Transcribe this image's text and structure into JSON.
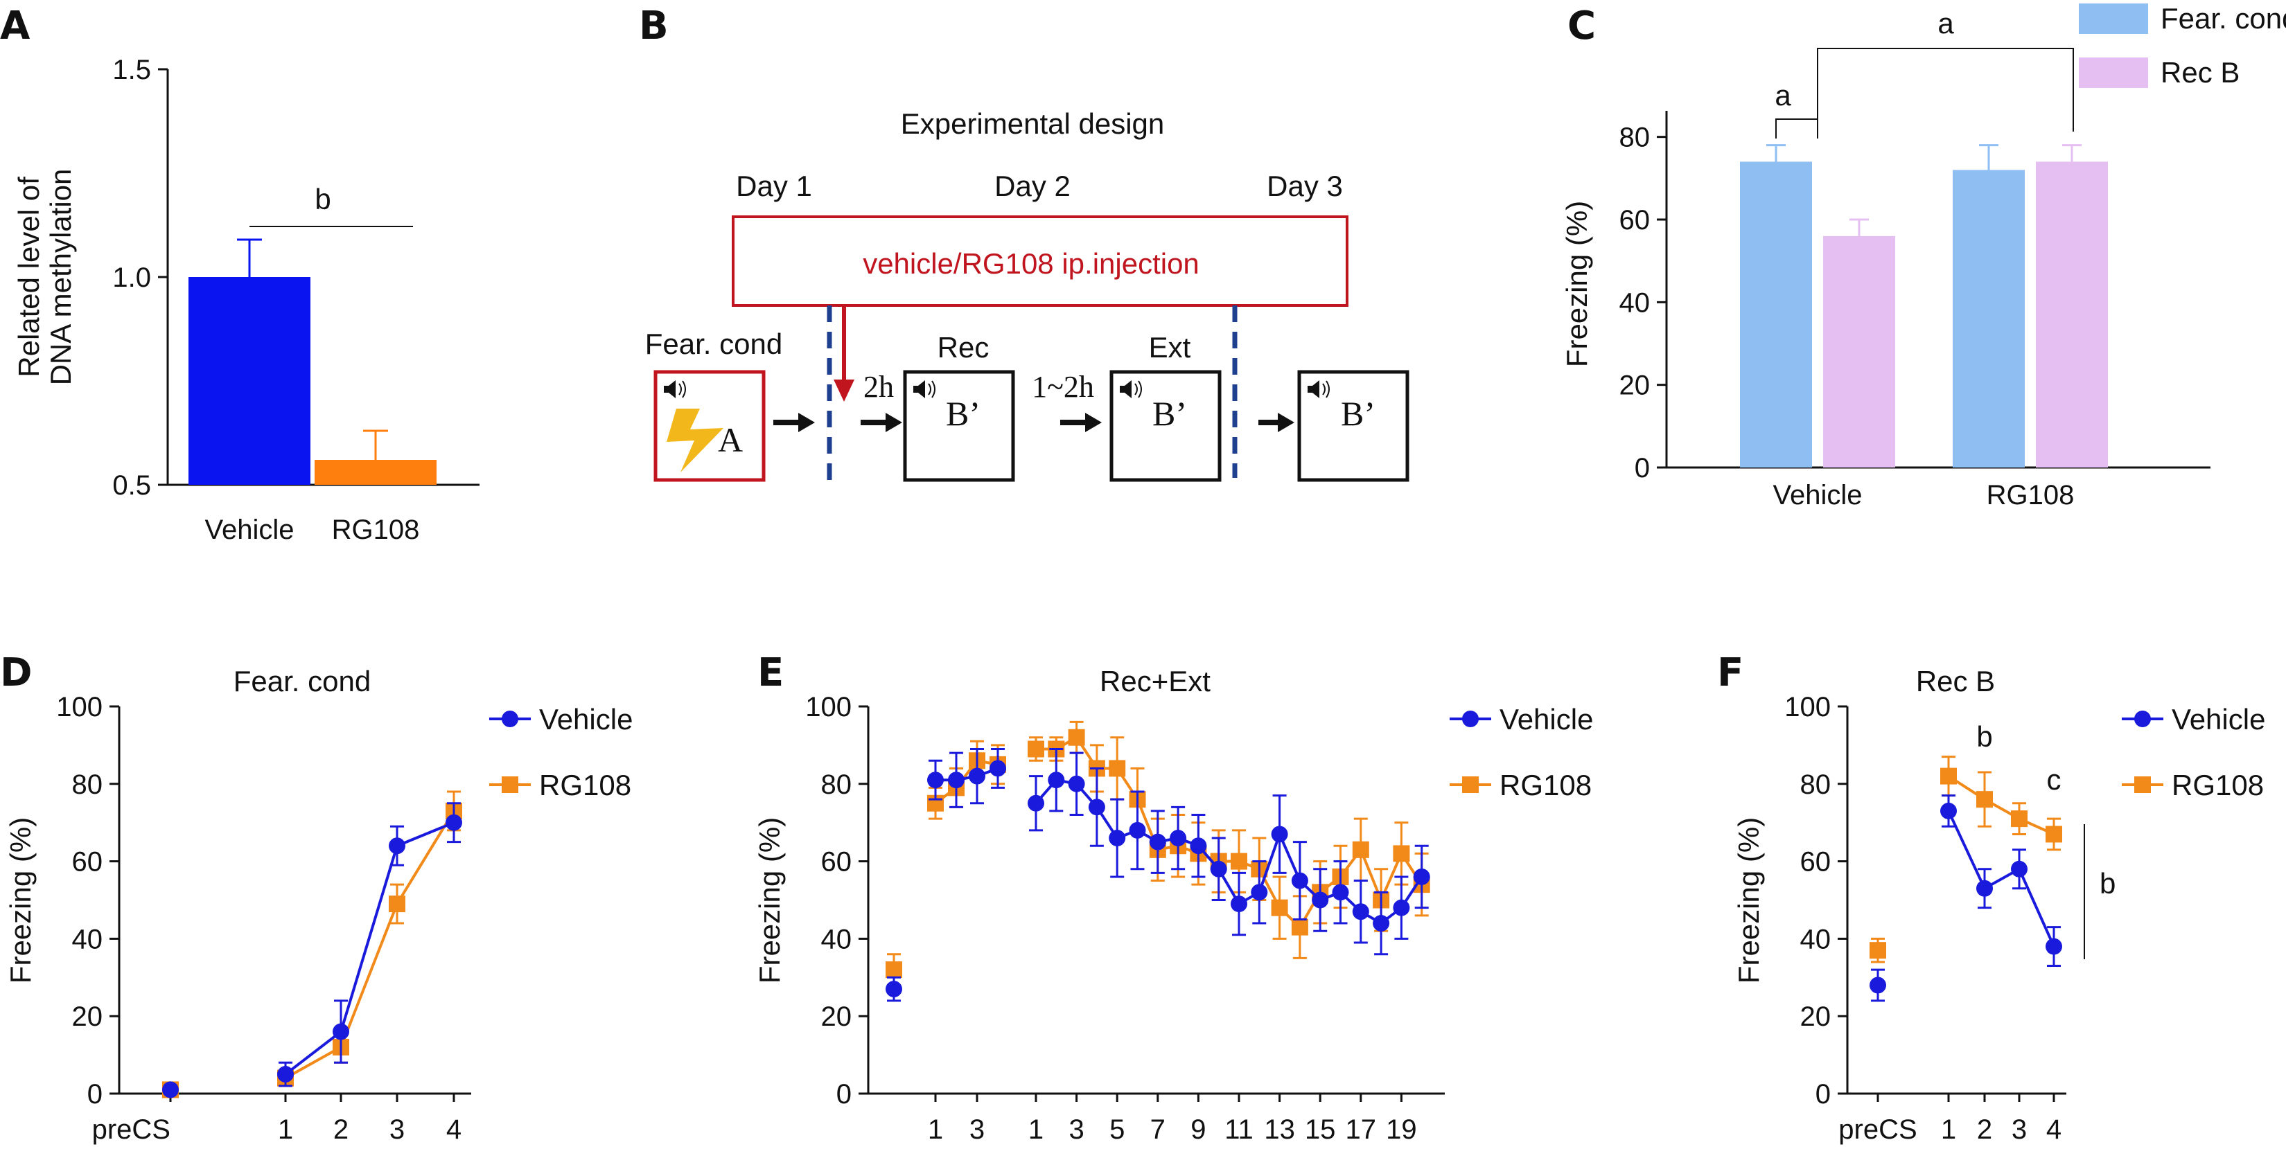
{
  "colors": {
    "vehicle_A": "#0a14f0",
    "rg108_A": "#ff7f0e",
    "fear_cond_C": "#8ebef2",
    "rec_b_C": "#e6bff2",
    "vehicle_line": "#1a1adc",
    "rg108_line": "#f28a1a",
    "design_red": "#c0141e",
    "design_dash": "#1f3f8f",
    "bolt": "#f2b71a"
  },
  "panels": {
    "A": {
      "letter": "A"
    },
    "B": {
      "letter": "B"
    },
    "C": {
      "letter": "C"
    },
    "D": {
      "letter": "D"
    },
    "E": {
      "letter": "E"
    },
    "F": {
      "letter": "F"
    }
  },
  "design": {
    "title": "Experimental design",
    "day1": "Day 1",
    "day2": "Day 2",
    "day3": "Day 3",
    "injection": "vehicle/RG108 ip.injection",
    "fear_cond": "Fear. cond",
    "rec": "Rec",
    "ext": "Ext",
    "gap1": "2h",
    "gap2": "1~2h",
    "box_a": "A",
    "box_b1": "B’",
    "box_b2": "B’",
    "box_b3": "B’",
    "speaker_icon": "speaker-icon",
    "lightning_icon": "lightning-icon"
  },
  "chart_data": [
    {
      "panel": "A",
      "type": "bar",
      "title": "",
      "ylabel": "Related level of DNA methylation",
      "xlabel": "",
      "categories": [
        "Vehicle",
        "RG108"
      ],
      "values": [
        1.0,
        0.56
      ],
      "errors": [
        0.09,
        0.07
      ],
      "ylim": [
        0.5,
        1.5
      ],
      "yticks": [
        "0.5",
        "1.0",
        "1.5"
      ],
      "significance": [
        {
          "label": "b",
          "between": [
            "Vehicle",
            "RG108"
          ]
        }
      ]
    },
    {
      "panel": "C",
      "type": "bar",
      "title": "",
      "ylabel": "Freezing (%)",
      "xlabel": "",
      "categories": [
        "Vehicle",
        "RG108"
      ],
      "series": [
        {
          "name": "Fear. cond",
          "values": [
            74,
            72
          ],
          "errors": [
            4,
            6
          ]
        },
        {
          "name": "Rec B",
          "values": [
            56,
            74
          ],
          "errors": [
            4,
            4
          ]
        }
      ],
      "ylim": [
        0,
        90
      ],
      "yticks": [
        "0",
        "20",
        "40",
        "60",
        "80"
      ],
      "legend": "top-right",
      "significance": [
        {
          "label": "a",
          "between": [
            "Vehicle Fear. cond",
            "Vehicle Rec B"
          ]
        },
        {
          "label": "a",
          "between": [
            "Vehicle Rec B",
            "RG108 Rec B"
          ]
        }
      ]
    },
    {
      "panel": "D",
      "type": "line",
      "title": "Fear. cond",
      "ylabel": "Freezing (%)",
      "xlabel": "",
      "x": [
        "preCS",
        "1",
        "2",
        "3",
        "4"
      ],
      "series": [
        {
          "name": "Vehicle",
          "values": [
            1,
            5,
            16,
            64,
            70
          ],
          "errors": [
            1,
            3,
            8,
            5,
            5
          ]
        },
        {
          "name": "RG108",
          "values": [
            1,
            4,
            12,
            49,
            73
          ],
          "errors": [
            1,
            2,
            4,
            5,
            5
          ]
        }
      ],
      "ylim": [
        0,
        100
      ],
      "yticks": [
        "0",
        "20",
        "40",
        "60",
        "80",
        "100"
      ],
      "legend": "top-right"
    },
    {
      "panel": "E",
      "type": "line",
      "title": "Rec+Ext",
      "ylabel": "Freezing (%)",
      "xlabel": "",
      "pre": {
        "vehicle": 27,
        "rg108": 32,
        "vehicle_err": 3,
        "rg108_err": 4
      },
      "rec_ticks": [
        "1",
        "3"
      ],
      "ext_ticks": [
        "1",
        "3",
        "5",
        "7",
        "9",
        "11",
        "13",
        "15",
        "17",
        "19"
      ],
      "series": [
        {
          "name": "Vehicle",
          "rec": [
            81,
            81,
            82,
            84
          ],
          "rec_err": [
            5,
            7,
            7,
            5
          ],
          "ext": [
            75,
            81,
            80,
            74,
            66,
            68,
            65,
            66,
            64,
            58,
            49,
            52,
            67,
            55,
            50,
            52,
            47,
            44,
            48,
            56
          ],
          "ext_err": [
            7,
            8,
            8,
            10,
            10,
            10,
            8,
            8,
            8,
            8,
            8,
            8,
            10,
            10,
            8,
            8,
            8,
            8,
            8,
            8
          ]
        },
        {
          "name": "RG108",
          "rec": [
            75,
            79,
            86,
            85
          ],
          "rec_err": [
            4,
            5,
            5,
            5
          ],
          "ext": [
            89,
            89,
            92,
            84,
            84,
            76,
            63,
            64,
            62,
            60,
            60,
            58,
            48,
            43,
            52,
            56,
            63,
            50,
            62,
            54
          ],
          "ext_err": [
            3,
            3,
            4,
            6,
            8,
            8,
            8,
            8,
            8,
            8,
            8,
            8,
            8,
            8,
            8,
            8,
            8,
            8,
            8,
            8
          ]
        }
      ],
      "ylim": [
        0,
        100
      ],
      "yticks": [
        "0",
        "20",
        "40",
        "60",
        "80",
        "100"
      ],
      "legend": "top-right"
    },
    {
      "panel": "F",
      "type": "line",
      "title": "Rec B",
      "ylabel": "Freezing (%)",
      "xlabel": "",
      "x": [
        "preCS",
        "1",
        "2",
        "3",
        "4"
      ],
      "series": [
        {
          "name": "Vehicle",
          "values": [
            28,
            73,
            53,
            58,
            38
          ],
          "errors": [
            4,
            4,
            5,
            5,
            5
          ]
        },
        {
          "name": "RG108",
          "values": [
            37,
            82,
            76,
            71,
            67
          ],
          "errors": [
            3,
            5,
            7,
            4,
            4
          ]
        }
      ],
      "ylim": [
        0,
        100
      ],
      "yticks": [
        "0",
        "20",
        "40",
        "60",
        "80",
        "100"
      ],
      "legend": "top-right",
      "significance": [
        {
          "label": "b",
          "at": "2"
        },
        {
          "label": "c",
          "at": "4"
        },
        {
          "label": "b",
          "between": [
            "RG108 4",
            "Vehicle 4"
          ]
        }
      ]
    }
  ]
}
